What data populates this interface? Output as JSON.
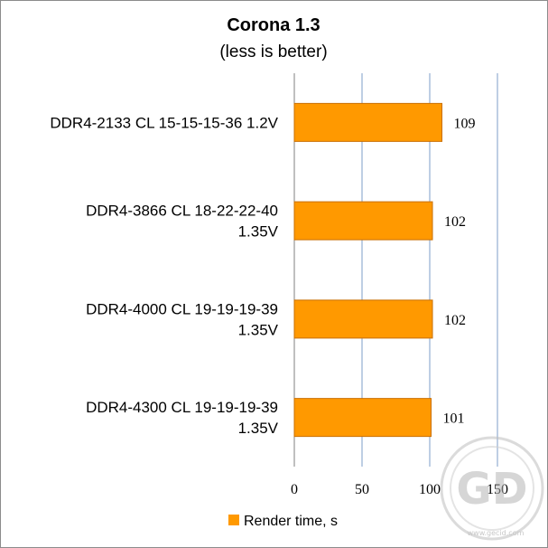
{
  "chart_data": {
    "type": "bar",
    "orientation": "horizontal",
    "title": "Corona 1.3",
    "subtitle": "(less is better)",
    "categories": [
      [
        "DDR4-2133 CL 15-15-15-36 1.2V"
      ],
      [
        "DDR4-3866 CL 18-22-22-40",
        "1.35V"
      ],
      [
        "DDR4-4000 CL 19-19-19-39",
        "1.35V"
      ],
      [
        "DDR4-4300 CL 19-19-19-39",
        "1.35V"
      ]
    ],
    "series": [
      {
        "name": "Render time, s",
        "values": [
          109,
          102,
          102,
          101
        ]
      }
    ],
    "xlim": [
      0,
      150
    ],
    "xticks": [
      "0",
      "50",
      "100",
      "150"
    ],
    "grid": true,
    "legend": "bottom",
    "colors": {
      "bar": "#ff9900",
      "bar_edge": "#c96f00",
      "grid": "#a9bedb",
      "axis": "#808080"
    }
  },
  "watermark": {
    "text": "GD",
    "caption": "www.gecid.com"
  }
}
